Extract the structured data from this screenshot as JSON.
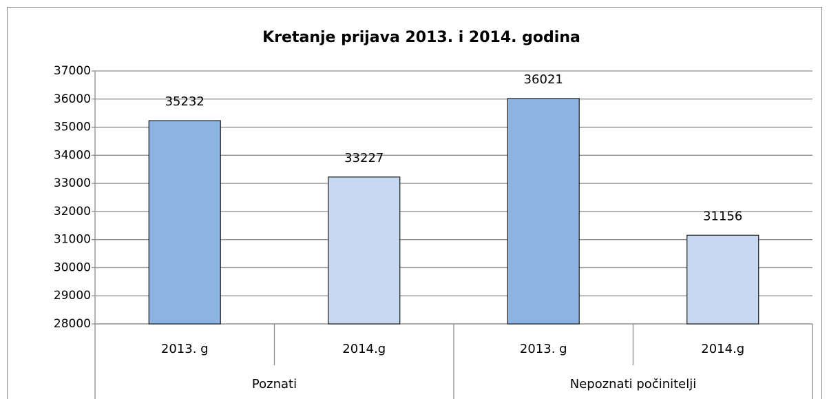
{
  "chart_data": {
    "type": "bar",
    "title": "Kretanje prijava 2013. i 2014. godina",
    "categories": [
      "2013. g",
      "2014.g",
      "2013. g",
      "2014.g"
    ],
    "groups": [
      "Poznati",
      "Nepoznati počinitelji"
    ],
    "values": [
      35232,
      33227,
      36021,
      31156
    ],
    "colors": [
      "#8db3e2",
      "#c6d9f1",
      "#8db3e2",
      "#c6d9f1"
    ],
    "ylim": [
      28000,
      37000
    ],
    "yticks": [
      28000,
      29000,
      30000,
      31000,
      32000,
      33000,
      34000,
      35000,
      36000,
      37000
    ],
    "grid": true
  }
}
